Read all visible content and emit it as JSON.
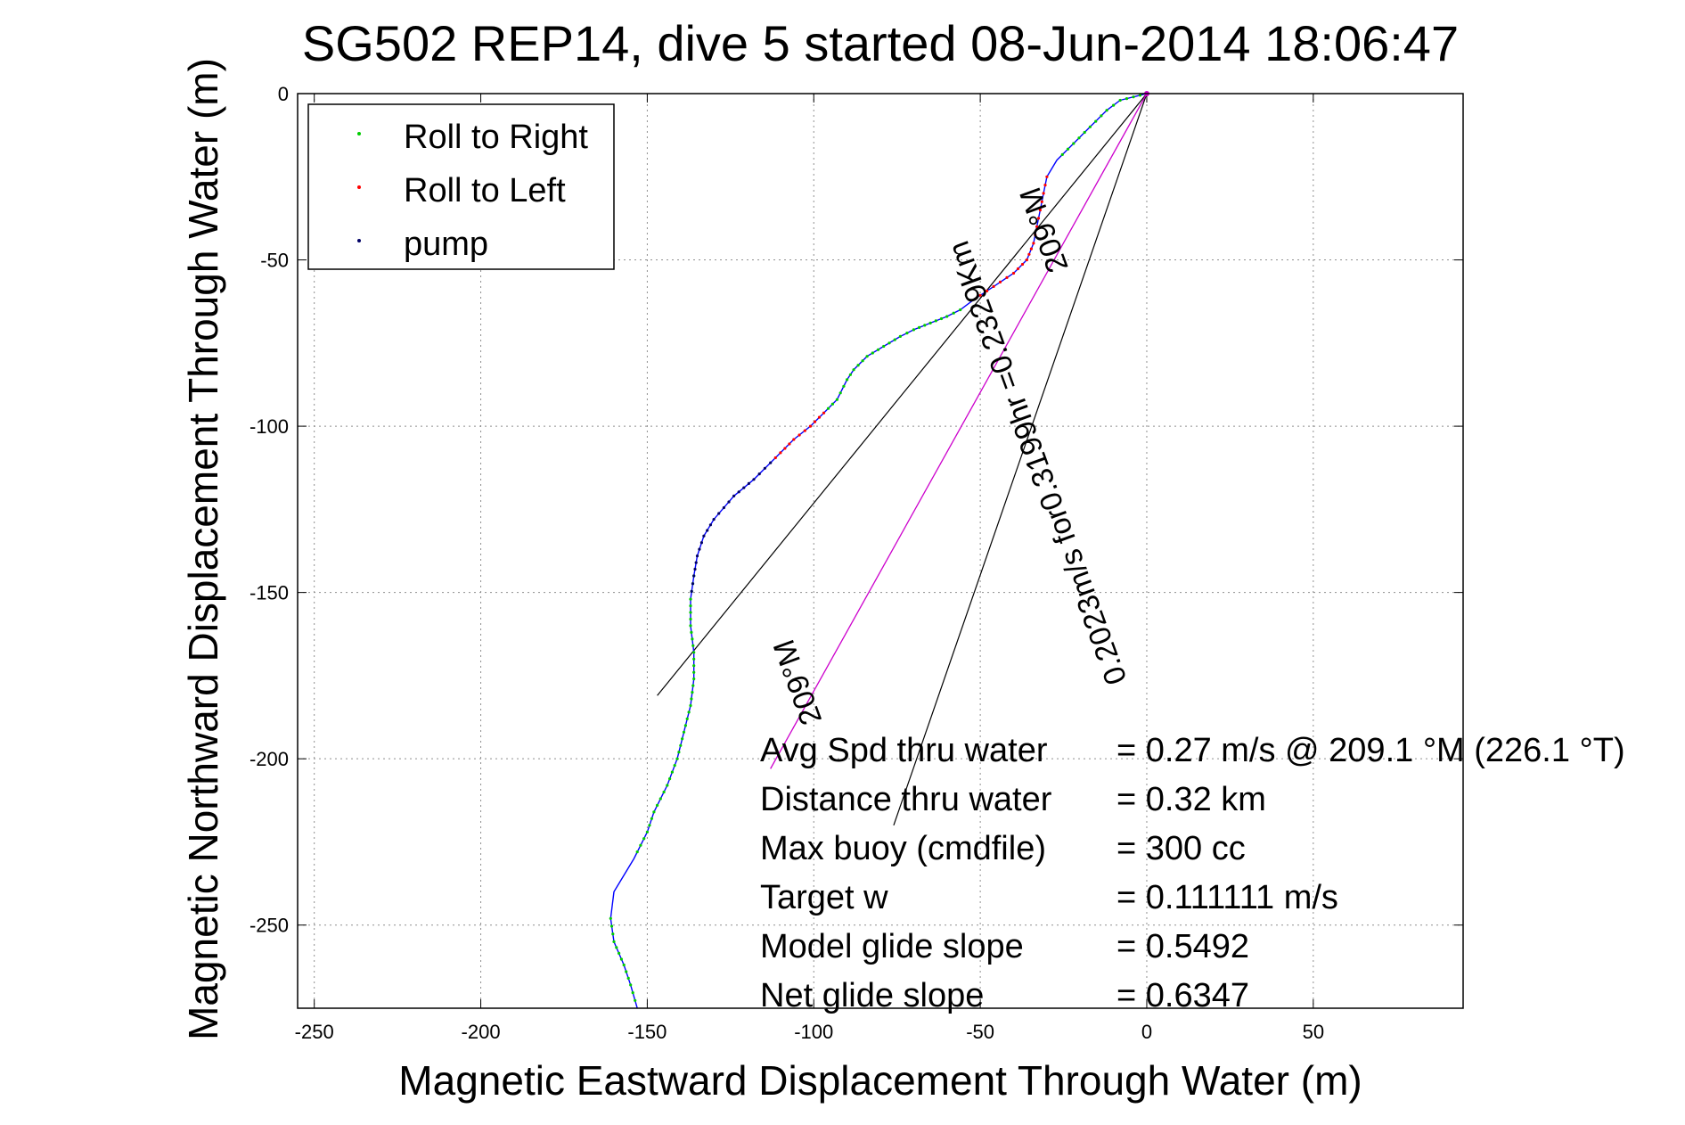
{
  "chart_data": {
    "type": "line",
    "title": "SG502 REP14, dive 5 started 08-Jun-2014 18:06:47",
    "xlabel": "Magnetic Eastward Displacement Through Water (m)",
    "ylabel": "Magnetic Northward Displacement Through Water (m)",
    "xlim": [
      -255,
      95
    ],
    "ylim": [
      -275,
      0
    ],
    "xticks": [
      -250,
      -200,
      -150,
      -100,
      -50,
      0,
      50
    ],
    "yticks": [
      0,
      -50,
      -100,
      -150,
      -200,
      -250
    ],
    "grid": true,
    "legend_position": "top-left",
    "colors": {
      "track": "#0000ff",
      "roll_right": "#00cc00",
      "roll_left": "#ff0000",
      "pump": "#000066",
      "mean_heading": "#cc00cc",
      "cone": "#000000"
    },
    "legend": [
      {
        "label": "Roll to Right",
        "color": "#00cc00"
      },
      {
        "label": "Roll to Left",
        "color": "#ff0000"
      },
      {
        "label": "pump",
        "color": "#000066"
      }
    ],
    "track": {
      "x": [
        0,
        -4,
        -8,
        -12,
        -17,
        -22,
        -27,
        -30,
        -31,
        -32,
        -33,
        -34,
        -36,
        -40,
        -46,
        -52,
        -56,
        -60,
        -65,
        -70,
        -74,
        -79,
        -84,
        -88,
        -90,
        -93,
        -97,
        -101,
        -106,
        -110,
        -113,
        -118,
        -124,
        -130,
        -133,
        -135,
        -136,
        -137,
        -137,
        -136,
        -136,
        -137,
        -139,
        -141,
        -144,
        -148,
        -150,
        -154,
        -160,
        -161,
        -160,
        -157,
        -155,
        -153
      ],
      "y": [
        0,
        -1,
        -2,
        -5,
        -10,
        -15,
        -20,
        -25,
        -30,
        -35,
        -40,
        -45,
        -50,
        -54,
        -58,
        -62,
        -65,
        -67,
        -69,
        -71,
        -73,
        -76,
        -79,
        -83,
        -86,
        -92,
        -96,
        -100,
        -104,
        -108,
        -111,
        -116,
        -121,
        -128,
        -133,
        -139,
        -145,
        -152,
        -160,
        -168,
        -176,
        -184,
        -192,
        -200,
        -208,
        -216,
        -222,
        -230,
        -240,
        -248,
        -255,
        -262,
        -268,
        -275
      ]
    },
    "roll_right_segments": [
      [
        0,
        6
      ],
      [
        16,
        26
      ],
      [
        36,
        47
      ],
      [
        49,
        53
      ]
    ],
    "roll_left_segments": [
      [
        7,
        15
      ],
      [
        26,
        30
      ]
    ],
    "pump_segment": [
      30,
      37
    ],
    "mean_heading_line": {
      "x": [
        0,
        -113
      ],
      "y": [
        0,
        -203
      ]
    },
    "cone_lines": [
      {
        "x": [
          0,
          -147
        ],
        "y": [
          0,
          -181
        ]
      },
      {
        "x": [
          0,
          -76
        ],
        "y": [
          0,
          -220
        ]
      }
    ],
    "annotations": [
      {
        "text": "0.2023m/s for0.3199hr =0.2329Km",
        "x": -30,
        "y": -110,
        "angle": 250
      },
      {
        "text": "209°M",
        "x": -28,
        "y": -40,
        "angle": 250
      },
      {
        "text": "209°M",
        "x": -102,
        "y": -176,
        "angle": 250
      }
    ],
    "stats": [
      {
        "label": "Avg Spd thru water",
        "value": "=  0.27 m/s @ 209.1 °M (226.1 °T)"
      },
      {
        "label": "Distance thru water",
        "value": "=  0.32 km"
      },
      {
        "label": "Max buoy (cmdfile)",
        "value": "= 300 cc"
      },
      {
        "label": "Target w",
        "value": "= 0.111111 m/s"
      },
      {
        "label": "Model glide slope",
        "value": "= 0.5492"
      },
      {
        "label": "Net glide slope",
        "value": "= 0.6347"
      }
    ]
  }
}
